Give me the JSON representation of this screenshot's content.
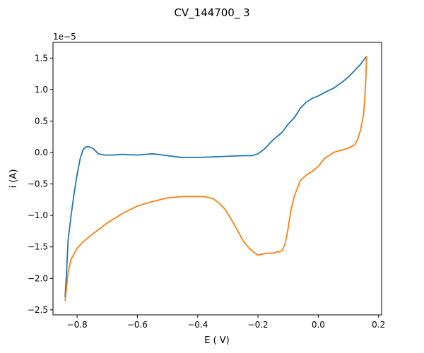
{
  "chart_data": {
    "type": "line",
    "title": "CV_144700_ 3",
    "xlabel": "E ( V)",
    "ylabel": "i (A)",
    "y_offset_label": "1e−5",
    "xlim": [
      -0.88,
      0.21
    ],
    "ylim": [
      -2.58,
      1.75
    ],
    "x_ticks": [
      -0.8,
      -0.6,
      -0.4,
      -0.2,
      0.0,
      0.2
    ],
    "x_tick_labels": [
      "−0.8",
      "−0.6",
      "−0.4",
      "−0.2",
      "0.0",
      "0.2"
    ],
    "y_ticks": [
      -2.5,
      -2.0,
      -1.5,
      -1.0,
      -0.5,
      0.0,
      0.5,
      1.0,
      1.5
    ],
    "y_tick_labels": [
      "−2.5",
      "−2.0",
      "−1.5",
      "−1.0",
      "−0.5",
      "0.0",
      "0.5",
      "1.0",
      "1.5"
    ],
    "grid": false,
    "colors": {
      "series1": "#1f77b4",
      "series2": "#ff7f0e"
    },
    "series": [
      {
        "color": "#1f77b4",
        "x": [
          -0.84,
          -0.835,
          -0.83,
          -0.82,
          -0.81,
          -0.8,
          -0.79,
          -0.78,
          -0.77,
          -0.76,
          -0.75,
          -0.74,
          -0.73,
          -0.72,
          -0.71,
          -0.7,
          -0.68,
          -0.65,
          -0.6,
          -0.55,
          -0.5,
          -0.45,
          -0.4,
          -0.35,
          -0.3,
          -0.25,
          -0.22,
          -0.2,
          -0.18,
          -0.15,
          -0.12,
          -0.1,
          -0.08,
          -0.06,
          -0.04,
          -0.02,
          0.0,
          0.02,
          0.05,
          0.08,
          0.1,
          0.12,
          0.14,
          0.16
        ],
        "y": [
          -2.3,
          -1.9,
          -1.4,
          -1.0,
          -0.65,
          -0.35,
          -0.1,
          0.05,
          0.09,
          0.09,
          0.07,
          0.03,
          -0.02,
          -0.03,
          -0.04,
          -0.04,
          -0.04,
          -0.03,
          -0.04,
          -0.02,
          -0.05,
          -0.08,
          -0.08,
          -0.07,
          -0.06,
          -0.05,
          -0.05,
          -0.02,
          0.05,
          0.2,
          0.32,
          0.45,
          0.55,
          0.7,
          0.8,
          0.86,
          0.9,
          0.95,
          1.02,
          1.12,
          1.2,
          1.3,
          1.4,
          1.53
        ]
      },
      {
        "color": "#ff7f0e",
        "x": [
          0.16,
          0.158,
          0.155,
          0.15,
          0.14,
          0.13,
          0.12,
          0.1,
          0.08,
          0.05,
          0.02,
          0.0,
          -0.02,
          -0.04,
          -0.06,
          -0.08,
          -0.09,
          -0.1,
          -0.11,
          -0.12,
          -0.13,
          -0.14,
          -0.15,
          -0.17,
          -0.19,
          -0.2,
          -0.21,
          -0.23,
          -0.25,
          -0.27,
          -0.29,
          -0.31,
          -0.33,
          -0.35,
          -0.38,
          -0.4,
          -0.45,
          -0.5,
          -0.55,
          -0.58,
          -0.6,
          -0.65,
          -0.7,
          -0.75,
          -0.78,
          -0.8,
          -0.82,
          -0.83,
          -0.835,
          -0.84
        ],
        "y": [
          1.53,
          1.2,
          0.9,
          0.6,
          0.35,
          0.2,
          0.12,
          0.07,
          0.04,
          0.0,
          -0.1,
          -0.22,
          -0.3,
          -0.36,
          -0.45,
          -0.7,
          -0.9,
          -1.2,
          -1.45,
          -1.56,
          -1.58,
          -1.58,
          -1.6,
          -1.6,
          -1.62,
          -1.63,
          -1.6,
          -1.52,
          -1.4,
          -1.22,
          -1.05,
          -0.9,
          -0.8,
          -0.73,
          -0.7,
          -0.7,
          -0.7,
          -0.72,
          -0.78,
          -0.82,
          -0.85,
          -0.97,
          -1.12,
          -1.3,
          -1.42,
          -1.52,
          -1.7,
          -1.9,
          -2.15,
          -2.36
        ]
      }
    ]
  }
}
